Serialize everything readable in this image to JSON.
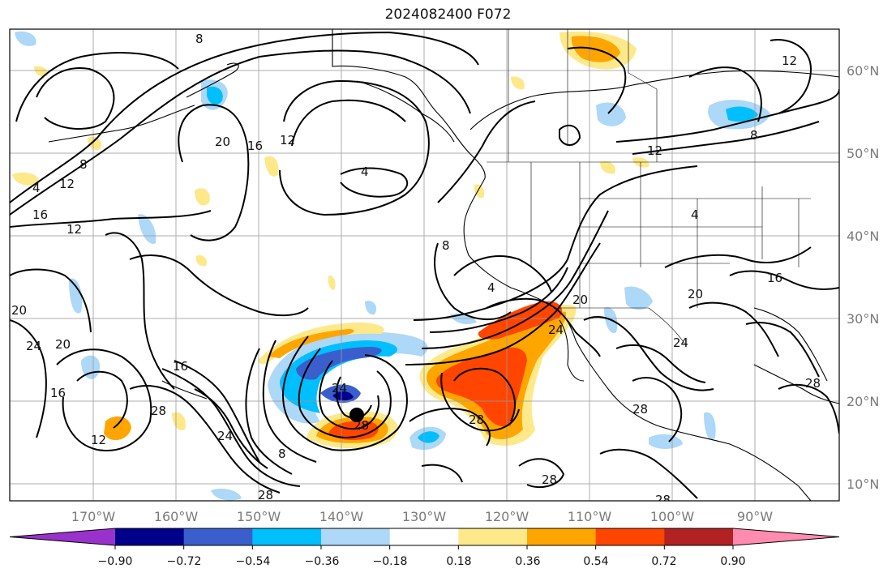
{
  "title": "2024082400 F072",
  "lat_labels": [
    "60°N",
    "50°N",
    "40°N",
    "30°N",
    "20°N",
    "10°N"
  ],
  "lon_labels": [
    "170°W",
    "160°W",
    "150°W",
    "140°W",
    "130°W",
    "120°W",
    "110°W",
    "100°W",
    "90°W"
  ],
  "colorbar": {
    "ticks": [
      "−0.90",
      "−0.72",
      "−0.54",
      "−0.36",
      "−0.18",
      "0.18",
      "0.36",
      "0.54",
      "0.72",
      "0.90"
    ],
    "colors": [
      "#9932cc",
      "#00008b",
      "#3a5fcd",
      "#00bfff",
      "#add8f7",
      "#ffffff",
      "#fde98a",
      "#ffa500",
      "#ff4500",
      "#b22222",
      "#ff8cb0"
    ]
  },
  "contour_labels": [
    "8",
    "12",
    "16",
    "20",
    "4",
    "12",
    "16",
    "8",
    "12",
    "4",
    "12",
    "20",
    "24",
    "20",
    "16",
    "28",
    "12",
    "16",
    "24",
    "24",
    "28",
    "8",
    "28",
    "28",
    "28",
    "4",
    "8",
    "20",
    "24",
    "28",
    "20",
    "16",
    "24",
    "8",
    "12",
    "4",
    "28",
    "28"
  ]
}
